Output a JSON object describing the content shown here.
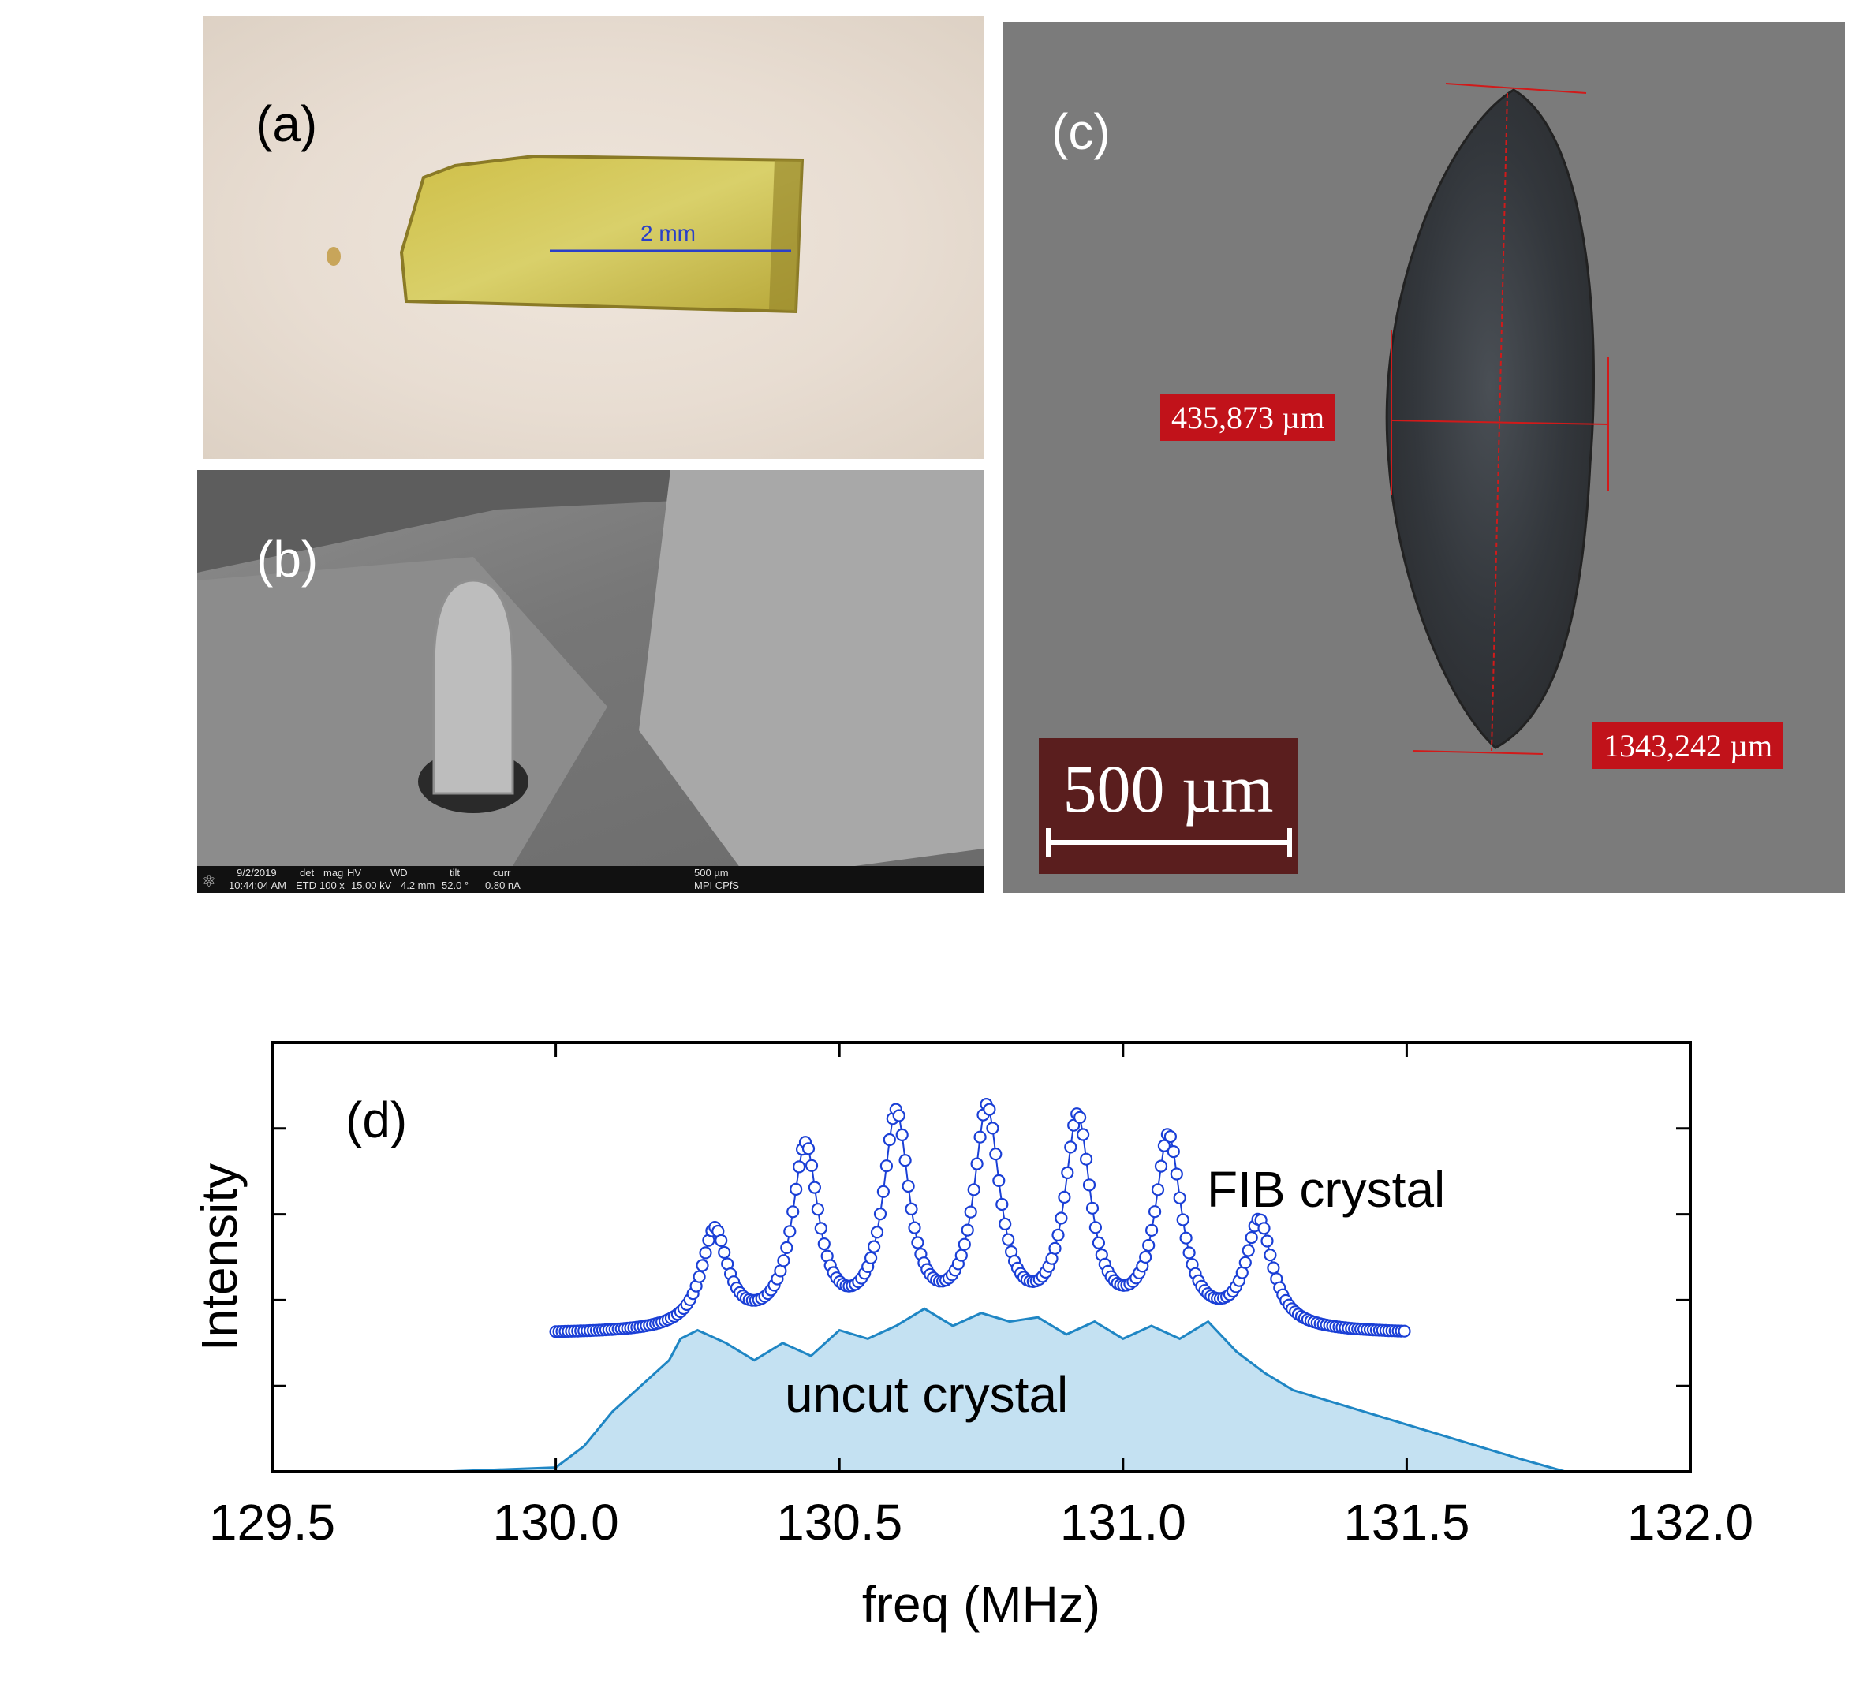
{
  "figure": {
    "panels": [
      {
        "label": "(a)",
        "scale_text": "2 mm"
      },
      {
        "label": "(b)",
        "sem_info": {
          "date": "9/2/2019",
          "time": "10:44:04 AM",
          "det_label": "det",
          "det": "ETD",
          "mag_label": "mag",
          "mag": "100 x",
          "hv_label": "HV",
          "hv": "15.00 kV",
          "wd_label": "WD",
          "wd": "4.2 mm",
          "tilt_label": "tilt",
          "tilt": "52.0 °",
          "curr_label": "curr",
          "curr": "0.80 nA",
          "scale": "500 µm",
          "institute": "MPI CPfS"
        }
      },
      {
        "label": "(c)",
        "width_measure": "435,873 µm",
        "length_measure": "1343,242 µm",
        "scale_bar": "500 µm"
      },
      {
        "label": "(d)"
      }
    ]
  },
  "chart_data": {
    "type": "line",
    "xlabel": "freq (MHz)",
    "ylabel": "Intensity",
    "xlim": [
      129.5,
      132.0
    ],
    "xticks": [
      "129.5",
      "130.0",
      "130.5",
      "131.0",
      "131.5",
      "132.0"
    ],
    "y_ticks_labeled": false,
    "colors": {
      "fib": "#1a3fd6",
      "uncut_line": "#1f86c4",
      "uncut_fill": "#c4e1f2"
    },
    "series": [
      {
        "name": "FIB crystal",
        "style": "open-circle markers with line",
        "x_range": [
          130.0,
          131.5
        ],
        "baseline": 0.32,
        "peaks": [
          {
            "x": 130.28,
            "height": 0.55
          },
          {
            "x": 130.44,
            "height": 0.74
          },
          {
            "x": 130.6,
            "height": 0.81
          },
          {
            "x": 130.76,
            "height": 0.82
          },
          {
            "x": 130.92,
            "height": 0.8
          },
          {
            "x": 131.08,
            "height": 0.76
          },
          {
            "x": 131.24,
            "height": 0.57
          }
        ]
      },
      {
        "name": "uncut crystal",
        "style": "filled area",
        "points": [
          [
            129.8,
            0.0
          ],
          [
            130.0,
            0.01
          ],
          [
            130.05,
            0.06
          ],
          [
            130.1,
            0.14
          ],
          [
            130.15,
            0.2
          ],
          [
            130.2,
            0.26
          ],
          [
            130.22,
            0.31
          ],
          [
            130.25,
            0.33
          ],
          [
            130.3,
            0.3
          ],
          [
            130.35,
            0.26
          ],
          [
            130.4,
            0.3
          ],
          [
            130.45,
            0.27
          ],
          [
            130.5,
            0.33
          ],
          [
            130.55,
            0.31
          ],
          [
            130.6,
            0.34
          ],
          [
            130.65,
            0.38
          ],
          [
            130.7,
            0.34
          ],
          [
            130.75,
            0.37
          ],
          [
            130.8,
            0.35
          ],
          [
            130.85,
            0.36
          ],
          [
            130.9,
            0.32
          ],
          [
            130.95,
            0.35
          ],
          [
            131.0,
            0.31
          ],
          [
            131.05,
            0.34
          ],
          [
            131.1,
            0.31
          ],
          [
            131.15,
            0.35
          ],
          [
            131.2,
            0.28
          ],
          [
            131.25,
            0.23
          ],
          [
            131.3,
            0.19
          ],
          [
            131.4,
            0.15
          ],
          [
            131.5,
            0.11
          ],
          [
            131.6,
            0.07
          ],
          [
            131.7,
            0.03
          ],
          [
            131.78,
            0.0
          ]
        ]
      }
    ]
  }
}
